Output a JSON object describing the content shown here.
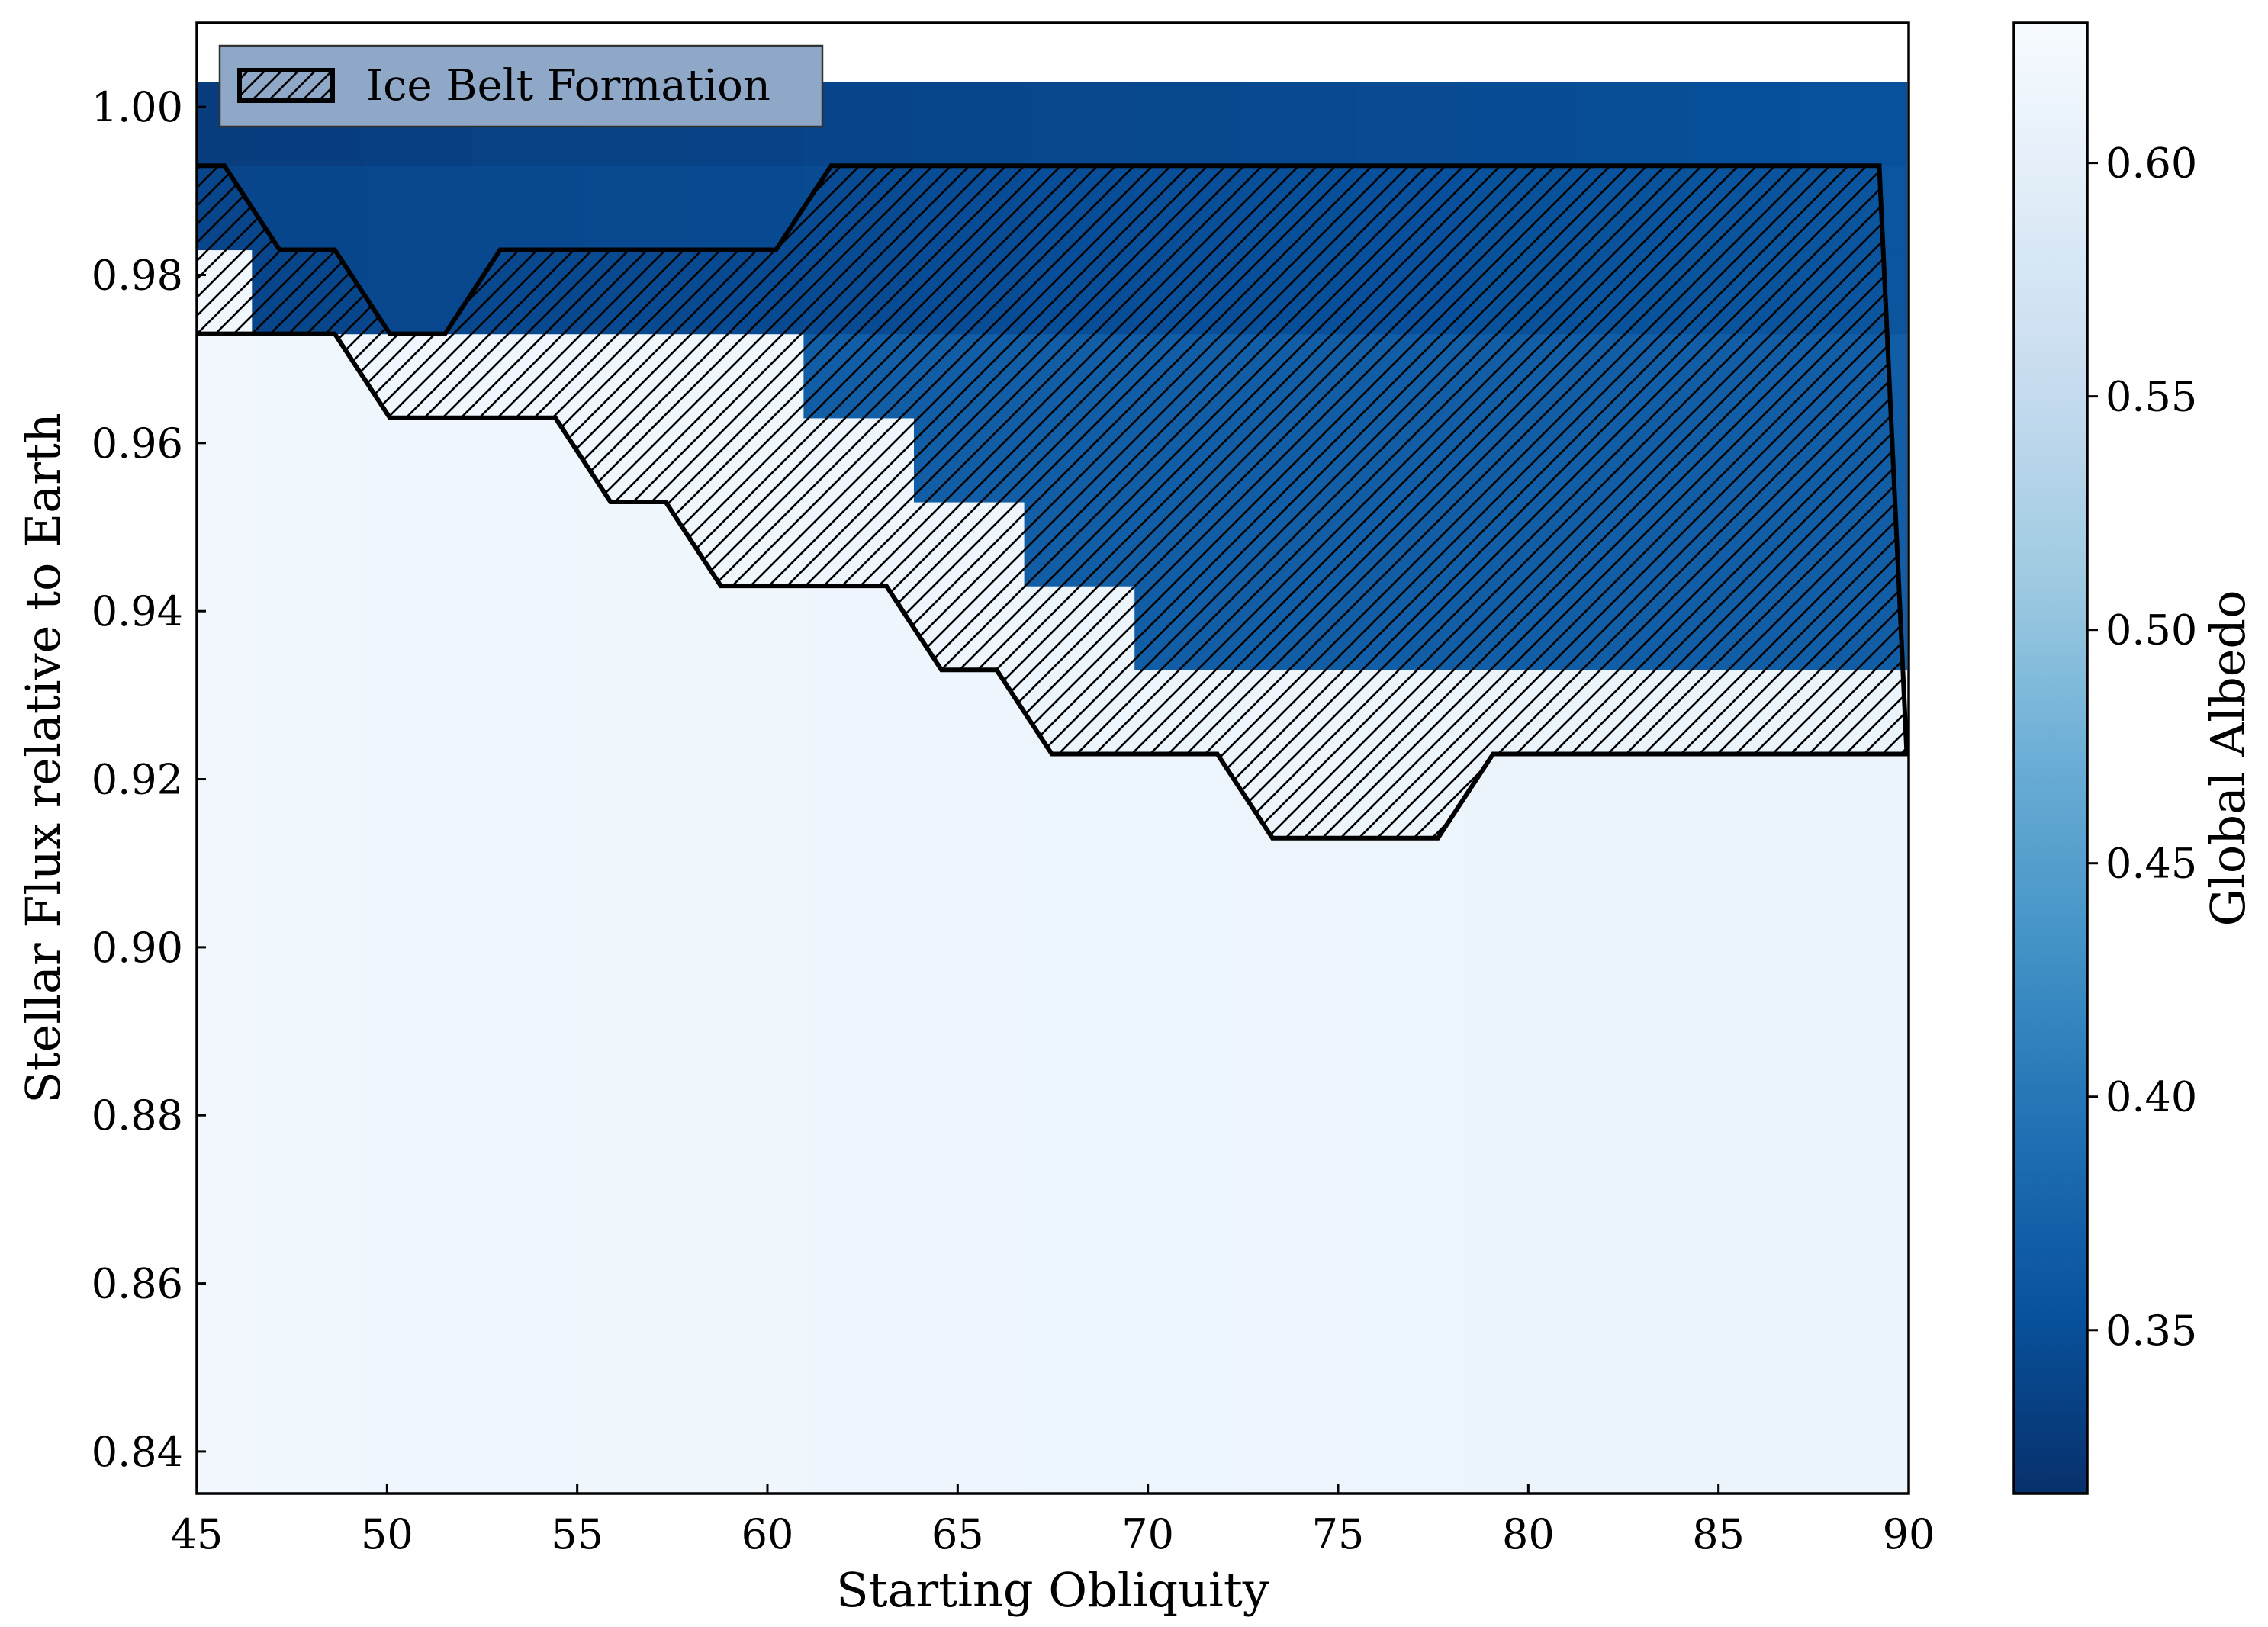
{
  "chart_data": {
    "type": "heatmap",
    "title": "",
    "xlabel": "Starting Obliquity",
    "ylabel": "Stellar Flux relative to Earth",
    "xlim": [
      45,
      90
    ],
    "ylim": [
      0.835,
      1.01
    ],
    "xticks": [
      "45",
      "50",
      "55",
      "60",
      "65",
      "70",
      "75",
      "80",
      "85",
      "90"
    ],
    "yticks": [
      "0.84",
      "0.86",
      "0.88",
      "0.90",
      "0.92",
      "0.94",
      "0.96",
      "0.98",
      "1.00"
    ],
    "colorbar": {
      "label": "Global Albedo",
      "range": [
        0.315,
        0.63
      ],
      "ticks": [
        "0.35",
        "0.40",
        "0.45",
        "0.50",
        "0.55",
        "0.60"
      ],
      "colormap": "Blues_r",
      "low_color": "#08306b",
      "high_color": "#f7fbff"
    },
    "grid": false,
    "legend": {
      "placement": "top-left",
      "entries": [
        "Ice Belt Formation"
      ]
    },
    "obliquity_columns": [
      45,
      47.9,
      50.8,
      53.7,
      56.6,
      59.5,
      62.4,
      65.3,
      68.2,
      71.1,
      74.0,
      76.9,
      79.8,
      82.7,
      85.6,
      88.5
    ],
    "flux_rows": [
      0.838,
      0.848,
      0.858,
      0.868,
      0.878,
      0.888,
      0.898,
      0.908,
      0.918,
      0.928,
      0.938,
      0.948,
      0.958,
      0.968,
      0.978,
      0.988,
      0.998
    ],
    "ice_free_boundary_flux": [
      0.988,
      0.978,
      0.978,
      0.978,
      0.978,
      0.978,
      0.968,
      0.958,
      0.948,
      0.938,
      0.938,
      0.938,
      0.938,
      0.938,
      0.938,
      0.938
    ],
    "ice_belt_region": {
      "upper_flux": [
        0.988,
        0.978,
        0.968,
        0.978,
        0.978,
        0.978,
        0.988,
        0.988,
        0.988,
        0.988,
        0.988,
        0.988,
        0.988,
        0.988,
        0.988,
        0.988
      ],
      "lower_flux": [
        0.978,
        0.978,
        0.968,
        0.968,
        0.958,
        0.948,
        0.948,
        0.938,
        0.928,
        0.928,
        0.918,
        0.918,
        0.928,
        0.928,
        0.928,
        0.928
      ]
    },
    "albedo_ice_free": 0.34,
    "albedo_ice_free_top": 0.33,
    "albedo_snowball": 0.62
  }
}
